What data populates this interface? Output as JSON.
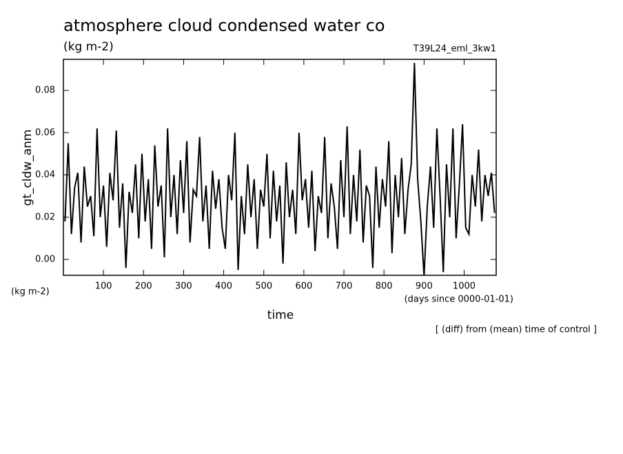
{
  "chart_data": {
    "type": "line",
    "title": "atmosphere cloud condensed water co",
    "subtitle": "(kg m-2)",
    "run_label": "T39L24_eml_3kw1",
    "y_label": "gt_cldw_anm",
    "y_units": "(kg m-2)",
    "x_label": "time",
    "x_units": "(days since 0000-01-01)",
    "note": "[ (diff) from (mean) time of control ]",
    "xlim": [
      0,
      1080
    ],
    "ylim": [
      -0.0075,
      0.0947
    ],
    "xticks": [
      100,
      200,
      300,
      400,
      500,
      600,
      700,
      800,
      900,
      1000
    ],
    "yticks": [
      {
        "value": 0,
        "label": "0.00"
      },
      {
        "value": 0.02,
        "label": "0.02"
      },
      {
        "value": 0.04,
        "label": "0.04"
      },
      {
        "value": 0.06,
        "label": "0.06"
      },
      {
        "value": 0.08,
        "label": "0.08"
      }
    ],
    "color": "#000000",
    "x": [
      4,
      12,
      20,
      28,
      36,
      44,
      52,
      60,
      68,
      76,
      84,
      92,
      100,
      108,
      116,
      124,
      132,
      140,
      148,
      156,
      164,
      172,
      180,
      188,
      196,
      204,
      212,
      220,
      228,
      236,
      244,
      252,
      260,
      268,
      276,
      284,
      292,
      300,
      308,
      316,
      324,
      332,
      340,
      348,
      356,
      364,
      372,
      380,
      388,
      396,
      404,
      412,
      420,
      428,
      436,
      444,
      452,
      460,
      468,
      476,
      484,
      492,
      500,
      508,
      516,
      524,
      532,
      540,
      548,
      556,
      564,
      572,
      580,
      588,
      596,
      604,
      612,
      620,
      628,
      636,
      644,
      652,
      660,
      668,
      676,
      684,
      692,
      700,
      708,
      716,
      724,
      732,
      740,
      748,
      756,
      764,
      772,
      780,
      788,
      796,
      804,
      812,
      820,
      828,
      836,
      844,
      852,
      860,
      868,
      876,
      884,
      892,
      900,
      908,
      916,
      924,
      932,
      940,
      948,
      956,
      964,
      972,
      980,
      988,
      996,
      1004,
      1012,
      1020,
      1028,
      1036,
      1044,
      1052,
      1060,
      1068,
      1076
    ],
    "values": [
      0.018,
      0.055,
      0.012,
      0.034,
      0.041,
      0.008,
      0.044,
      0.025,
      0.03,
      0.011,
      0.062,
      0.02,
      0.035,
      0.006,
      0.041,
      0.028,
      0.061,
      0.015,
      0.036,
      -0.004,
      0.032,
      0.022,
      0.045,
      0.01,
      0.05,
      0.018,
      0.038,
      0.005,
      0.054,
      0.025,
      0.035,
      0.001,
      0.062,
      0.02,
      0.04,
      0.012,
      0.047,
      0.022,
      0.056,
      0.008,
      0.033,
      0.03,
      0.058,
      0.018,
      0.035,
      0.005,
      0.042,
      0.024,
      0.038,
      0.015,
      0.005,
      0.04,
      0.028,
      0.06,
      -0.005,
      0.03,
      0.012,
      0.045,
      0.02,
      0.038,
      0.005,
      0.033,
      0.025,
      0.05,
      0.01,
      0.042,
      0.018,
      0.035,
      -0.002,
      0.046,
      0.02,
      0.033,
      0.012,
      0.06,
      0.028,
      0.038,
      0.015,
      0.042,
      0.004,
      0.03,
      0.022,
      0.058,
      0.01,
      0.036,
      0.025,
      0.005,
      0.047,
      0.02,
      0.063,
      0.012,
      0.04,
      0.018,
      0.052,
      0.008,
      0.035,
      0.03,
      -0.004,
      0.044,
      0.015,
      0.038,
      0.025,
      0.056,
      0.003,
      0.04,
      0.02,
      0.048,
      0.012,
      0.033,
      0.045,
      0.093,
      0.038,
      0.018,
      -0.008,
      0.025,
      0.044,
      0.015,
      0.062,
      0.03,
      -0.006,
      0.045,
      0.02,
      0.062,
      0.01,
      0.035,
      0.064,
      0.015,
      0.012,
      0.04,
      0.025,
      0.052,
      0.018,
      0.04,
      0.03,
      0.041,
      0.022
    ]
  }
}
